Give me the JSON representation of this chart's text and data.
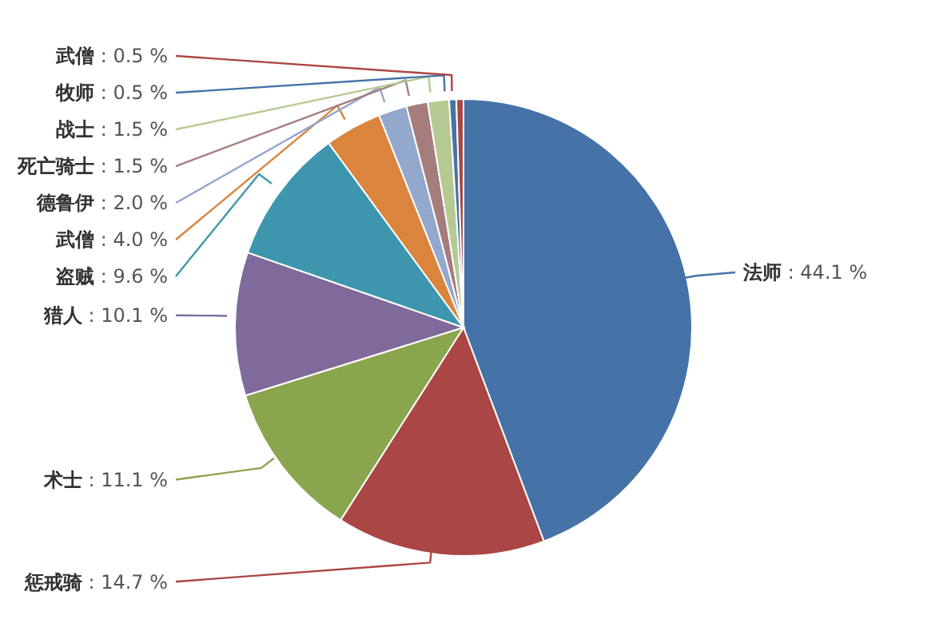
{
  "chart_data": {
    "type": "pie",
    "categories": [
      "法师",
      "惩戒骑",
      "术士",
      "猎人",
      "盗贼",
      "武僧",
      "德鲁伊",
      "死亡骑士",
      "战士",
      "牧师",
      "武僧"
    ],
    "values": [
      44.1,
      14.7,
      11.1,
      10.1,
      9.6,
      4.0,
      2.0,
      1.5,
      1.5,
      0.5,
      0.5
    ],
    "value_labels": [
      ": 44.1 %",
      ": 14.7 %",
      ": 11.1 %",
      ": 10.1 %",
      ": 9.6 %",
      ": 4.0 %",
      ": 2.0 %",
      ": 1.5 %",
      ": 1.5 %",
      ": 0.5 %",
      ": 0.5 %"
    ],
    "colors": [
      "#4572a7",
      "#aa4643",
      "#89a54e",
      "#80699b",
      "#3d96ae",
      "#db843d",
      "#92a8cd",
      "#a47d7c",
      "#b5ca92",
      "#4572a7",
      "#aa4643"
    ],
    "legend": false
  }
}
